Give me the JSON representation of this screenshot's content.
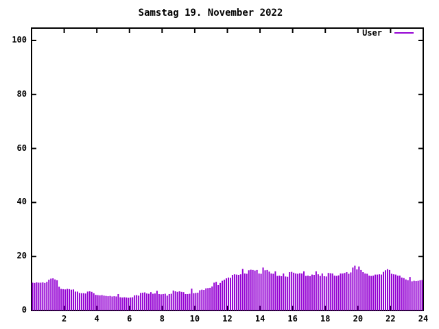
{
  "window": {
    "background": "#ffffff"
  },
  "chart_data": {
    "type": "bar",
    "title": "Samstag 19. November 2022",
    "legend": {
      "position": "top-right",
      "entries": [
        {
          "label": "User",
          "color": "#9400d3"
        }
      ]
    },
    "x_axis": {
      "range": [
        0,
        24
      ],
      "ticks": [
        2,
        4,
        6,
        8,
        10,
        12,
        14,
        16,
        18,
        20,
        22,
        24
      ],
      "unit": "hour"
    },
    "y_axis": {
      "range": [
        0,
        100
      ],
      "ticks": [
        0,
        20,
        40,
        60,
        80,
        100
      ]
    },
    "grid": false,
    "bar_color": "#9400d3",
    "axis_color": "#000000",
    "interval_minutes": 7.5,
    "series": [
      {
        "name": "User",
        "values": [
          10.3,
          10.2,
          10.4,
          10.3,
          10.3,
          10.4,
          10.2,
          10.6,
          11.4,
          11.8,
          11.9,
          11.5,
          11.2,
          8.8,
          8.0,
          7.9,
          7.8,
          8.0,
          7.9,
          7.7,
          7.8,
          7.0,
          7.0,
          6.5,
          6.4,
          6.4,
          6.3,
          7.0,
          7.1,
          6.9,
          6.4,
          5.8,
          5.7,
          5.6,
          5.7,
          5.5,
          5.4,
          5.3,
          5.4,
          5.2,
          5.3,
          5.2,
          6.1,
          4.9,
          4.8,
          4.9,
          4.8,
          4.7,
          4.8,
          4.9,
          5.6,
          5.7,
          5.5,
          6.5,
          6.6,
          6.7,
          6.3,
          6.2,
          6.8,
          6.2,
          6.3,
          7.3,
          6.1,
          6.0,
          6.1,
          6.2,
          5.5,
          6.1,
          6.2,
          7.4,
          7.1,
          6.9,
          7.1,
          6.9,
          6.8,
          6.1,
          6.1,
          6.2,
          8.1,
          6.4,
          6.5,
          6.6,
          7.5,
          7.7,
          7.6,
          8.2,
          8.3,
          8.4,
          8.9,
          10.3,
          10.6,
          9.4,
          10.2,
          11.0,
          11.4,
          11.9,
          12.2,
          12.1,
          13.2,
          13.4,
          13.3,
          13.2,
          13.4,
          15.4,
          13.7,
          13.6,
          14.9,
          15.1,
          15.0,
          14.8,
          15.0,
          13.7,
          13.6,
          15.9,
          14.9,
          15.0,
          14.4,
          13.7,
          13.6,
          14.5,
          12.8,
          12.9,
          12.7,
          13.7,
          12.6,
          12.5,
          14.2,
          14.3,
          14.0,
          13.7,
          13.6,
          13.8,
          13.7,
          14.5,
          12.8,
          12.9,
          12.7,
          13.3,
          13.2,
          14.5,
          13.4,
          12.8,
          13.7,
          12.7,
          12.6,
          13.9,
          13.8,
          13.7,
          12.9,
          12.8,
          13.0,
          13.7,
          13.7,
          13.9,
          14.2,
          13.6,
          14.1,
          15.9,
          16.6,
          15.2,
          16.3,
          15.0,
          14.2,
          13.7,
          13.6,
          12.9,
          12.8,
          12.9,
          13.3,
          13.3,
          13.4,
          13.3,
          14.3,
          14.9,
          15.3,
          15.0,
          13.6,
          13.4,
          13.3,
          12.9,
          12.9,
          12.2,
          12.0,
          11.5,
          11.2,
          12.4,
          10.8,
          11.0,
          10.9,
          11.0,
          11.2,
          11.3
        ]
      }
    ]
  }
}
